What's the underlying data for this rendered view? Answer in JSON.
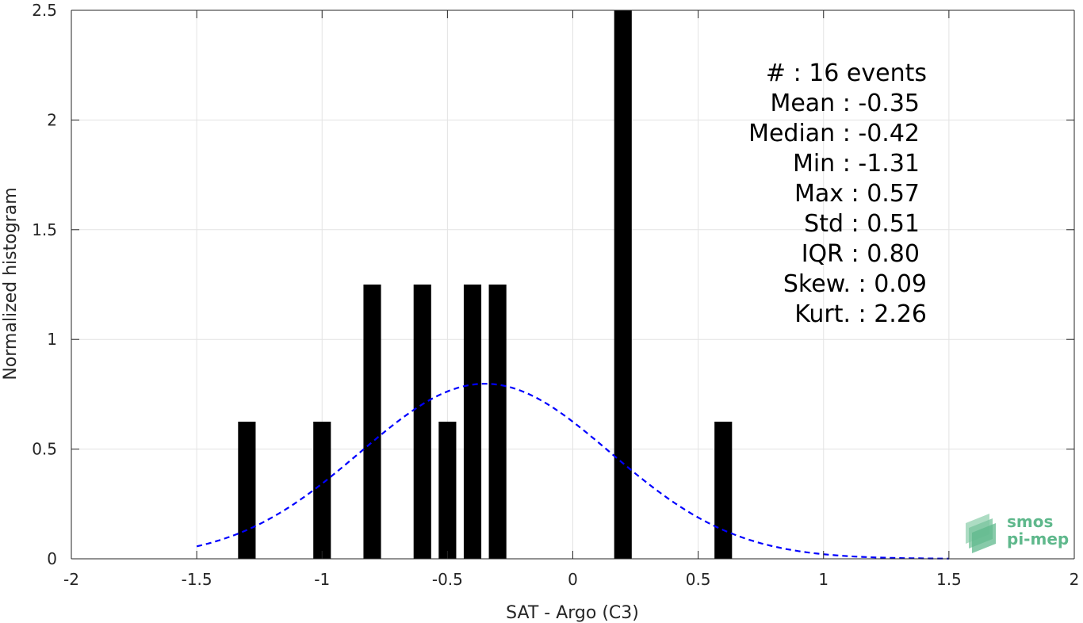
{
  "chart_data": {
    "type": "bar",
    "title": "",
    "xlabel": "SAT - Argo (C3)",
    "ylabel": "Normalized histogram",
    "xlim": [
      -2,
      2
    ],
    "ylim": [
      0,
      2.5
    ],
    "xticks": [
      "-2",
      "-1.5",
      "-1",
      "-0.5",
      "0",
      "0.5",
      "1",
      "1.5",
      "2"
    ],
    "yticks": [
      "0",
      "0.5",
      "1",
      "1.5",
      "2",
      "2.5"
    ],
    "grid": true,
    "bar_color": "#000000",
    "bins": [
      {
        "x": -1.3,
        "value": 0.625
      },
      {
        "x": -1.0,
        "value": 0.625
      },
      {
        "x": -0.8,
        "value": 1.25
      },
      {
        "x": -0.6,
        "value": 1.25
      },
      {
        "x": -0.5,
        "value": 0.625
      },
      {
        "x": -0.4,
        "value": 1.25
      },
      {
        "x": -0.3,
        "value": 1.25
      },
      {
        "x": 0.2,
        "value": 2.5
      },
      {
        "x": 0.6,
        "value": 0.625
      }
    ],
    "bin_width": 0.07,
    "fit": {
      "type": "normal",
      "mean": -0.35,
      "std": 0.5,
      "x_range": [
        -1.5,
        1.5
      ],
      "color": "#0000ff",
      "style": "dashed"
    },
    "stats_lines": [
      "#  : 16 events",
      "Mean : -0.35",
      "Median : -0.42",
      "Min : -1.31",
      "Max : 0.57",
      "Std : 0.51",
      "IQR : 0.80",
      "Skew. : 0.09",
      "Kurt. : 2.26"
    ]
  },
  "logo": {
    "line1": "smos",
    "line2": "pi-mep",
    "color": "#5fb88c"
  }
}
